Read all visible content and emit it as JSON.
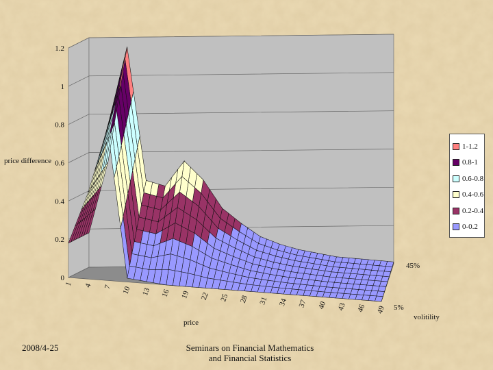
{
  "footer": {
    "date": "2008/4-25",
    "title_line1": "Seminars on Financial Mathematics",
    "title_line2": "and Financial Statistics"
  },
  "colors": {
    "slide_background": "#e9d7b0",
    "wall": "#c0c0c0",
    "floor": "#8c8c8c",
    "band_colors": [
      "#9999ff",
      "#993366",
      "#ffffcc",
      "#ccffff",
      "#660066",
      "#ff8080"
    ]
  },
  "chart_data": {
    "type": "surface",
    "title": "",
    "zlabel": "price difference",
    "xlabel": "price",
    "ylabel": "volitility",
    "zlim": [
      0,
      1.2
    ],
    "z_ticks": [
      "0",
      "0.2",
      "0.4",
      "0.6",
      "0.8",
      "1",
      "1.2"
    ],
    "x_ticks": [
      "1",
      "4",
      "7",
      "10",
      "13",
      "16",
      "19",
      "22",
      "25",
      "28",
      "31",
      "34",
      "37",
      "40",
      "43",
      "46",
      "49"
    ],
    "y_ticks": [
      "5%",
      "45%"
    ],
    "legend": {
      "placement": "right",
      "entries": [
        "1-1.2",
        "0.8-1",
        "0.6-0.8",
        "0.4-0.6",
        "0.2-0.4",
        "0-0.2"
      ]
    },
    "x": [
      1,
      4,
      7,
      10,
      13,
      16,
      19,
      22,
      25,
      28,
      31,
      34,
      37,
      40,
      43,
      46,
      49
    ],
    "series": [
      {
        "name": "5%",
        "values": [
          0.18,
          0.45,
          0.8,
          0.02,
          0.01,
          0.0,
          0.0,
          0.0,
          0.0,
          0.0,
          0.0,
          0.0,
          0.0,
          0.0,
          0.0,
          0.0,
          0.0
        ]
      },
      {
        "name": "45%",
        "values": [
          0.18,
          0.55,
          1.15,
          0.45,
          0.42,
          0.55,
          0.45,
          0.3,
          0.22,
          0.15,
          0.11,
          0.08,
          0.06,
          0.04,
          0.03,
          0.02,
          0.01
        ]
      }
    ]
  }
}
